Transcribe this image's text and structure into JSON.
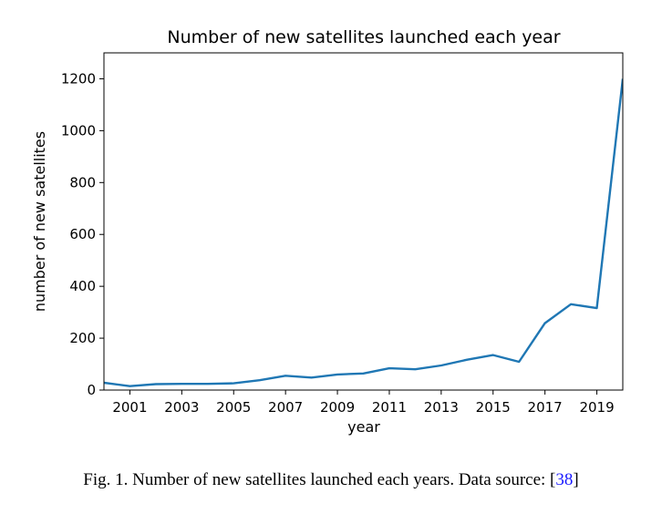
{
  "chart_data": {
    "type": "line",
    "title": "Number of new satellites launched each year",
    "xlabel": "year",
    "ylabel": "number of new satellites",
    "xlim": [
      2000,
      2020
    ],
    "ylim": [
      0,
      1300
    ],
    "xticks": [
      2001,
      2003,
      2005,
      2007,
      2009,
      2011,
      2013,
      2015,
      2017,
      2019
    ],
    "yticks": [
      0,
      200,
      400,
      600,
      800,
      1000,
      1200
    ],
    "grid": false,
    "series_color": "#1f77b4",
    "x": [
      2000,
      2001,
      2002,
      2003,
      2004,
      2005,
      2006,
      2007,
      2008,
      2009,
      2010,
      2011,
      2012,
      2013,
      2014,
      2015,
      2016,
      2017,
      2018,
      2019,
      2020
    ],
    "values": [
      28,
      15,
      23,
      24,
      24,
      26,
      38,
      55,
      48,
      60,
      64,
      84,
      80,
      95,
      117,
      135,
      109,
      258,
      331,
      316,
      1200
    ]
  },
  "caption": {
    "text": "Fig. 1.  Number of new satellites launched each years. Data source: [",
    "ref": "38",
    "close": "]"
  }
}
